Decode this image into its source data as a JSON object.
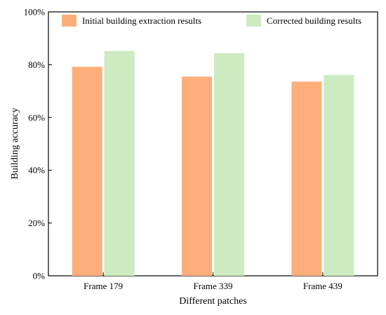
{
  "chart_data": {
    "type": "bar",
    "title": "",
    "xlabel": "Different patches",
    "ylabel": "Building accuracy",
    "categories": [
      "Frame 179",
      "Frame 339",
      "Frame 439"
    ],
    "series": [
      {
        "name": "Initial building extraction results",
        "color": "#FDAE7B",
        "values": [
          79.2,
          75.5,
          73.6
        ]
      },
      {
        "name": "Corrected building results",
        "color": "#CCEBC0",
        "values": [
          85.2,
          84.4,
          76.1
        ]
      }
    ],
    "ylim": [
      0,
      100
    ],
    "yticks": [
      0,
      20,
      40,
      60,
      80,
      100
    ],
    "ytick_labels": [
      "0%",
      "20%",
      "40%",
      "60%",
      "80%",
      "100%"
    ],
    "grid": false,
    "legend_position": "top"
  }
}
